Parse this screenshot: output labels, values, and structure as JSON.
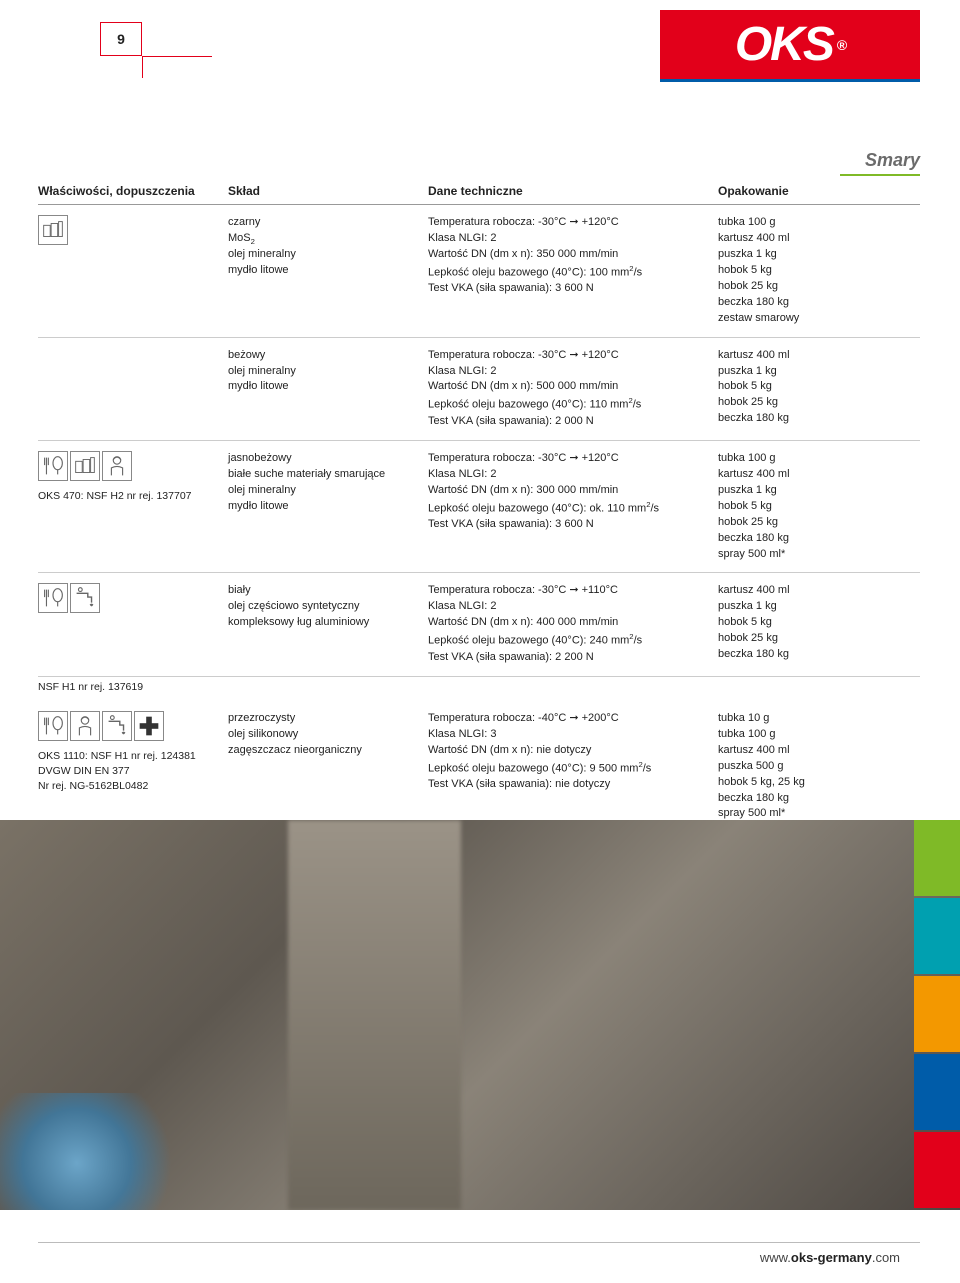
{
  "page_number": "9",
  "logo_text": "OKS",
  "logo_bg": "#e2001a",
  "category_label": "Smary",
  "footer_url_prefix": "www.",
  "footer_url_bold": "oks-germany",
  "footer_url_suffix": ".com",
  "headers": {
    "notes": "Właściwości, dopuszczenia",
    "sklad": "Skład",
    "tech": "Dane techniczne",
    "pack": "Opakowanie"
  },
  "rows": [
    {
      "icons": [
        "canisters"
      ],
      "notes": "",
      "sklad": [
        "czarny",
        "MoS₂",
        "olej mineralny",
        "mydło litowe"
      ],
      "tech": [
        "Temperatura robocza: -30°C ➞ +120°C",
        "Klasa NLGI: 2",
        "Wartość DN (dm x n): 350 000 mm/min",
        "Lepkość oleju bazowego (40°C): 100 mm²/s",
        "Test VKA (siła spawania): 3 600 N"
      ],
      "pack": [
        "tubka 100 g",
        "kartusz 400 ml",
        "puszka 1 kg",
        "hobok 5 kg",
        "hobok 25 kg",
        "beczka 180 kg",
        "zestaw smarowy"
      ]
    },
    {
      "icons": [],
      "notes": "",
      "sklad": [
        "beżowy",
        "olej mineralny",
        "mydło litowe"
      ],
      "tech": [
        "Temperatura robocza: -30°C ➞ +120°C",
        "Klasa NLGI: 2",
        "Wartość DN (dm x n): 500 000 mm/min",
        "Lepkość oleju bazowego (40°C): 110 mm²/s",
        "Test VKA (siła spawania): 2 000 N"
      ],
      "pack": [
        "kartusz 400 ml",
        "puszka 1 kg",
        "hobok 5 kg",
        "hobok 25 kg",
        "beczka 180 kg"
      ]
    },
    {
      "icons": [
        "food",
        "canisters",
        "worker"
      ],
      "notes": "OKS 470: NSF H2 nr rej. 137707",
      "sklad": [
        "jasnobeżowy",
        "białe suche materiały smarujące",
        "olej mineralny",
        "mydło litowe"
      ],
      "tech": [
        "Temperatura robocza: -30°C ➞ +120°C",
        "Klasa NLGI: 2",
        "Wartość DN (dm x n): 300 000 mm/min",
        "Lepkość oleju bazowego (40°C): ok. 110 mm²/s",
        "Test VKA (siła spawania): 3 600 N"
      ],
      "pack": [
        "tubka 100 g",
        "kartusz 400 ml",
        "puszka 1 kg",
        "hobok 5 kg",
        "hobok 25 kg",
        "beczka 180 kg",
        "spray 500 ml*"
      ]
    },
    {
      "icons": [
        "food",
        "tap"
      ],
      "notes": "NSF H1 nr rej. 137619",
      "notes_below": true,
      "sklad": [
        "biały",
        "olej częściowo syntetyczny",
        "kompleksowy ług aluminiowy"
      ],
      "tech": [
        "Temperatura robocza: -30°C ➞ +110°C",
        "Klasa NLGI: 2",
        "Wartość DN (dm x n): 400 000 mm/min",
        "Lepkość oleju bazowego (40°C): 240 mm²/s",
        "Test VKA (siła spawania): 2 200 N"
      ],
      "pack": [
        "kartusz 400 ml",
        "puszka 1 kg",
        "hobok 5 kg",
        "hobok 25 kg",
        "beczka 180 kg"
      ]
    },
    {
      "icons": [
        "food",
        "worker",
        "tap",
        "plus"
      ],
      "notes": "OKS 1110: NSF H1 nr rej. 124381\nDVGW DIN EN 377\nNr rej. NG-5162BL0482",
      "sklad": [
        "przezroczysty",
        "olej silikonowy",
        "zagęszczacz nieorganiczny"
      ],
      "tech": [
        "Temperatura robocza: -40°C ➞ +200°C",
        "Klasa NLGI: 3",
        "Wartość DN (dm x n): nie dotyczy",
        "Lepkość oleju bazowego (40°C): 9 500 mm²/s",
        "Test VKA (siła spawania): nie dotyczy"
      ],
      "pack": [
        "tubka 10 g",
        "tubka 100 g",
        "kartusz 400 ml",
        "puszka 500 g",
        "hobok 5 kg, 25 kg",
        "beczka 180 kg",
        "spray 500 ml*"
      ]
    }
  ],
  "side_tab_colors": [
    "#7fba27",
    "#00a0b0",
    "#f39800",
    "#005ca9",
    "#e2001a"
  ],
  "icon_svgs": {
    "canisters": "<rect x='5' y='10' width='7' height='12' fill='none' stroke='#666' stroke-width='1'/><rect x='13' y='8' width='7' height='14' fill='none' stroke='#666' stroke-width='1'/><rect x='21' y='6' width='4' height='16' fill='none' stroke='#666' stroke-width='1'/>",
    "food": "<path d='M8 6 L8 24 M6 6 L6 14 M10 6 L10 14' stroke='#666' fill='none' stroke-width='1.2'/><ellipse cx='20' cy='12' rx='5' ry='7' fill='none' stroke='#666' stroke-width='1.2'/><line x1='20' y1='19' x2='20' y2='24' stroke='#666' stroke-width='1.2'/>",
    "worker": "<circle cx='15' cy='9' r='4' fill='none' stroke='#666' stroke-width='1.2'/><path d='M11 8 Q15 3 19 8' stroke='#666' fill='none' stroke-width='1.2'/><path d='M9 25 L9 17 Q15 14 21 17 L21 25' fill='none' stroke='#666' stroke-width='1.2'/>",
    "tap": "<path d='M6 10 L18 10 L18 14 L22 14 L22 20' fill='none' stroke='#666' stroke-width='1.5'/><circle cx='10' cy='6' r='2' fill='none' stroke='#666' stroke-width='1.2'/><path d='M20 22 Q22 26 24 22 Q22 20 20 22' fill='#666'/>",
    "plus": "<rect x='12' y='5' width='6' height='20' fill='#333'/><rect x='5' y='12' width='20' height='6' fill='#333'/>"
  }
}
